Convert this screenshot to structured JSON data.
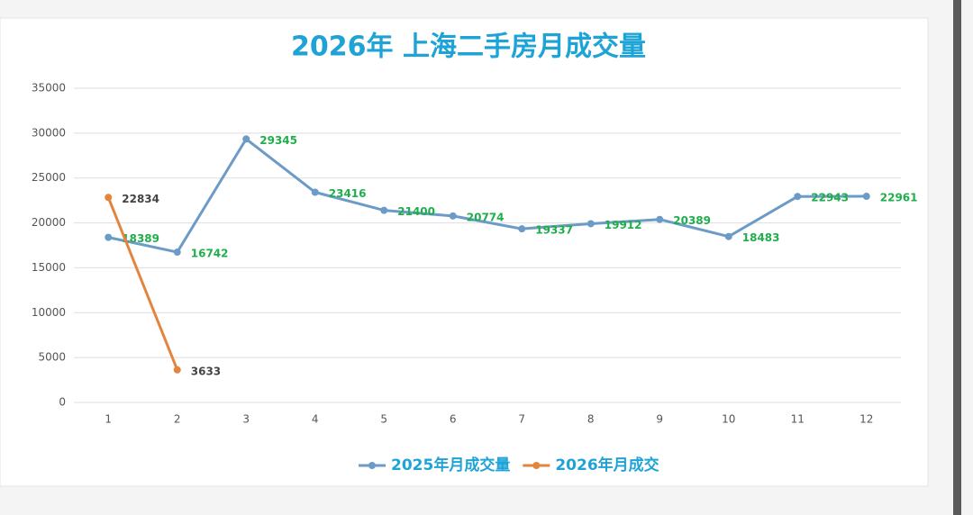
{
  "chart_data": {
    "type": "line",
    "title": "2026年 上海二手房月成交量",
    "categories": [
      "1",
      "2",
      "3",
      "4",
      "5",
      "6",
      "7",
      "8",
      "9",
      "10",
      "11",
      "12"
    ],
    "series": [
      {
        "name": "2025年月成交量",
        "color": "#6b9bc6",
        "label_color": "#1fae4b",
        "values": [
          18389,
          16742,
          29345,
          23416,
          21400,
          20774,
          19337,
          19912,
          20389,
          18483,
          22943,
          22961
        ]
      },
      {
        "name": "2026年月成交",
        "color": "#e3843f",
        "label_color": "#444444",
        "values": [
          22834,
          3633,
          null,
          null,
          null,
          null,
          null,
          null,
          null,
          null,
          null,
          null
        ]
      }
    ],
    "ylim": [
      0,
      35000
    ],
    "yticks": [
      0,
      5000,
      10000,
      15000,
      20000,
      25000,
      30000,
      35000
    ],
    "grid": true,
    "legend": "bottom"
  }
}
